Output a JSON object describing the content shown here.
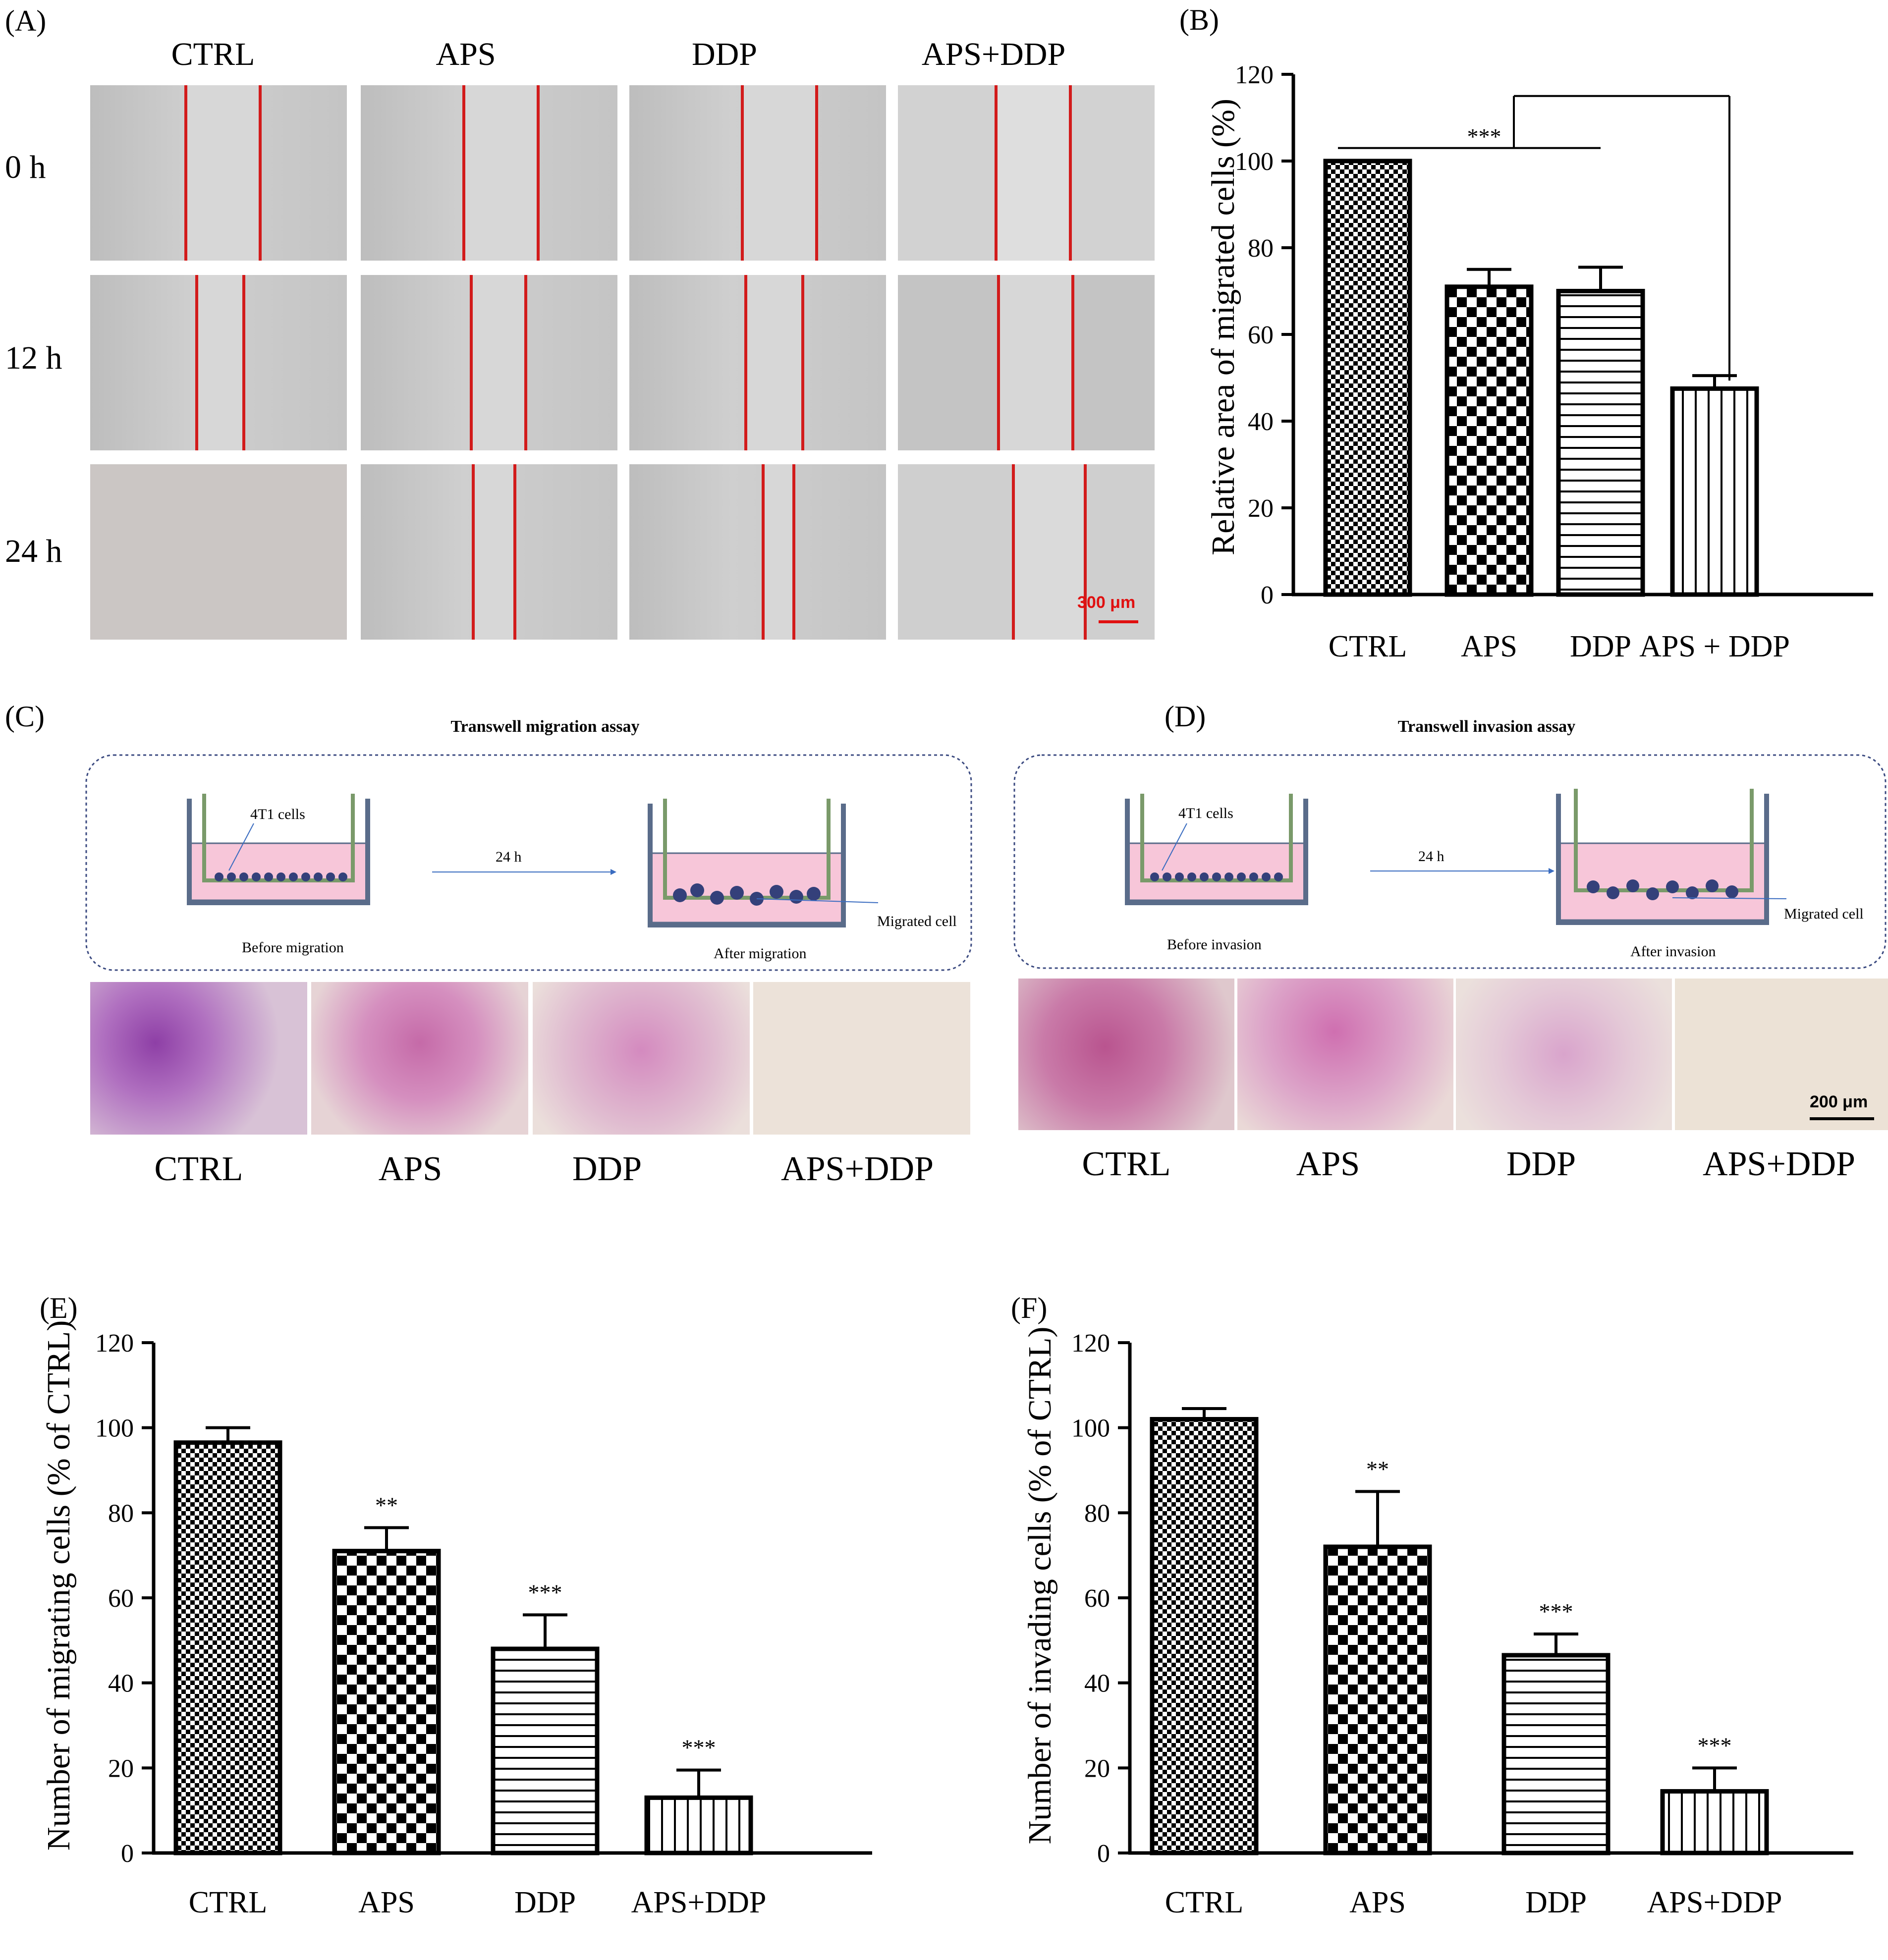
{
  "panel_a": {
    "letter": "(A)",
    "columns": [
      "CTRL",
      "APS",
      "DDP",
      "APS+DDP"
    ],
    "rows": [
      "0 h",
      "12 h",
      "24 h"
    ],
    "scale_bar": "300 μm"
  },
  "panel_c": {
    "letter": "(C)",
    "title": "Transwell migration assay",
    "cells_label": "4T1 cells",
    "time_label": "24 h",
    "before_label": "Before migration",
    "after_label": "After migration",
    "migrated_label": "Migrated cell",
    "images": [
      "CTRL",
      "APS",
      "DDP",
      "APS+DDP"
    ]
  },
  "panel_d": {
    "letter": "(D)",
    "title": "Transwell invasion assay",
    "cells_label": "4T1 cells",
    "time_label": "24 h",
    "before_label": "Before invasion",
    "after_label": "After invasion",
    "migrated_label": "Migrated cell",
    "images": [
      "CTRL",
      "APS",
      "DDP",
      "APS+DDP"
    ],
    "scale_bar": "200 μm"
  },
  "chart_data": [
    {
      "id": "B",
      "letter": "(B)",
      "type": "bar",
      "categories": [
        "CTRL",
        "APS",
        "DDP",
        "APS + DDP"
      ],
      "values": [
        100,
        71,
        70,
        47.5
      ],
      "errors": [
        0,
        4,
        5.5,
        3
      ],
      "annotations": [
        "",
        "",
        "",
        ""
      ],
      "bracket_label": "***",
      "ylabel": "Relative area of migrated cells (%)",
      "ylim": [
        0,
        120
      ],
      "yticks": [
        0,
        20,
        40,
        60,
        80,
        100,
        120
      ],
      "patterns": [
        "checker-fine",
        "checker",
        "hlines",
        "vlines"
      ]
    },
    {
      "id": "E",
      "letter": "(E)",
      "type": "bar",
      "categories": [
        "CTRL",
        "APS",
        "DDP",
        "APS+DDP"
      ],
      "values": [
        96.5,
        71,
        48,
        13
      ],
      "errors": [
        3.5,
        5.5,
        8,
        6.5
      ],
      "annotations": [
        "",
        "**",
        "***",
        "***"
      ],
      "ylabel": "Number of migrating cells (% of CTRL)",
      "ylim": [
        0,
        120
      ],
      "yticks": [
        0,
        20,
        40,
        60,
        80,
        100,
        120
      ],
      "patterns": [
        "checker-fine",
        "checker",
        "hlines",
        "vlines"
      ]
    },
    {
      "id": "F",
      "letter": "(F)",
      "type": "bar",
      "categories": [
        "CTRL",
        "APS",
        "DDP",
        "APS+DDP"
      ],
      "values": [
        102,
        72,
        46.5,
        14.5
      ],
      "errors": [
        2.5,
        13,
        5,
        5.5
      ],
      "annotations": [
        "",
        "**",
        "***",
        "***"
      ],
      "ylabel": "Number of invading cells (% of CTRL)",
      "ylim": [
        0,
        120
      ],
      "yticks": [
        0,
        20,
        40,
        60,
        80,
        100,
        120
      ],
      "patterns": [
        "checker-fine",
        "checker",
        "hlines",
        "vlines"
      ]
    }
  ]
}
